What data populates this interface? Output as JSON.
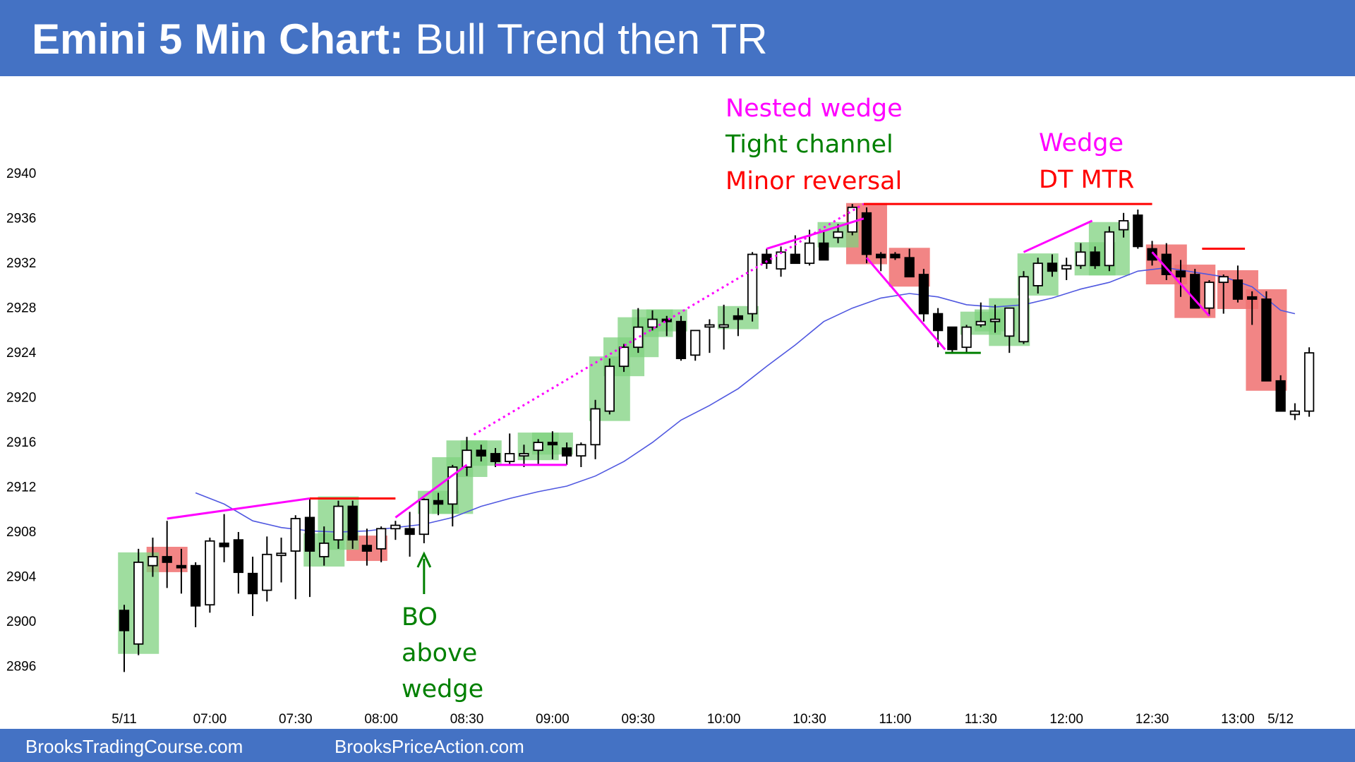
{
  "header": {
    "title_bold": "Emini 5 Min Chart:",
    "title_rest": " Bull Trend then TR"
  },
  "footer": {
    "left": "BrooksTradingCourse.com",
    "right": "BrooksPriceAction.com"
  },
  "colors": {
    "banner": "#4472c4",
    "bull_box": "#7fd17f",
    "bear_box": "#f07070",
    "magenta": "#ff00ff",
    "red": "#ff0000",
    "green": "#008000",
    "ema": "#5058e0"
  },
  "annotations": {
    "nested_wedge": "Nested wedge",
    "tight_channel": "Tight channel",
    "minor_reversal": "Minor reversal",
    "wedge": "Wedge",
    "dt_mtr": "DT MTR",
    "bo_1": "BO",
    "bo_2": "above",
    "bo_3": "wedge"
  },
  "chart_data": {
    "type": "candlestick",
    "title": "Emini 5 Min Chart: Bull Trend then TR",
    "ylim": [
      2894,
      2946
    ],
    "y_ticks": [
      2896,
      2900,
      2904,
      2908,
      2912,
      2916,
      2920,
      2924,
      2928,
      2932,
      2936,
      2940
    ],
    "x_tick_labels": [
      "5/11",
      "07:00",
      "07:30",
      "08:00",
      "08:30",
      "09:00",
      "09:30",
      "10:00",
      "10:30",
      "11:00",
      "11:30",
      "12:00",
      "12:30",
      "13:00",
      "5/12"
    ],
    "x_tick_bars": [
      0,
      6,
      12,
      18,
      24,
      30,
      36,
      42,
      48,
      54,
      60,
      66,
      72,
      78,
      81
    ],
    "bars": [
      {
        "o": 2901.0,
        "h": 2901.5,
        "l": 2895.5,
        "c": 2899.2
      },
      {
        "o": 2898.0,
        "h": 2906.5,
        "l": 2897.0,
        "c": 2905.3
      },
      {
        "o": 2905.0,
        "h": 2907.5,
        "l": 2904.0,
        "c": 2905.8
      },
      {
        "o": 2905.8,
        "h": 2909.0,
        "l": 2903.0,
        "c": 2905.3
      },
      {
        "o": 2905.0,
        "h": 2906.5,
        "l": 2902.5,
        "c": 2904.9
      },
      {
        "o": 2905.0,
        "h": 2905.3,
        "l": 2899.5,
        "c": 2901.4
      },
      {
        "o": 2901.5,
        "h": 2907.5,
        "l": 2900.8,
        "c": 2907.2
      },
      {
        "o": 2907.0,
        "h": 2909.6,
        "l": 2905.3,
        "c": 2906.7
      },
      {
        "o": 2907.3,
        "h": 2908.0,
        "l": 2902.5,
        "c": 2904.4
      },
      {
        "o": 2904.3,
        "h": 2905.8,
        "l": 2900.5,
        "c": 2902.5
      },
      {
        "o": 2902.8,
        "h": 2907.6,
        "l": 2901.8,
        "c": 2906.0
      },
      {
        "o": 2906.0,
        "h": 2907.5,
        "l": 2903.5,
        "c": 2906.1
      },
      {
        "o": 2906.3,
        "h": 2909.5,
        "l": 2902.0,
        "c": 2909.2
      },
      {
        "o": 2909.3,
        "h": 2911.0,
        "l": 2902.2,
        "c": 2906.3
      },
      {
        "o": 2905.8,
        "h": 2908.5,
        "l": 2905.0,
        "c": 2907.0
      },
      {
        "o": 2907.3,
        "h": 2910.8,
        "l": 2906.5,
        "c": 2910.3
      },
      {
        "o": 2910.3,
        "h": 2910.8,
        "l": 2906.5,
        "c": 2907.3
      },
      {
        "o": 2906.8,
        "h": 2908.3,
        "l": 2905.0,
        "c": 2906.3
      },
      {
        "o": 2906.5,
        "h": 2908.5,
        "l": 2905.3,
        "c": 2908.3
      },
      {
        "o": 2908.3,
        "h": 2909.0,
        "l": 2907.3,
        "c": 2908.6
      },
      {
        "o": 2908.3,
        "h": 2909.8,
        "l": 2905.8,
        "c": 2907.8
      },
      {
        "o": 2907.8,
        "h": 2911.0,
        "l": 2907.0,
        "c": 2910.9
      },
      {
        "o": 2910.8,
        "h": 2911.5,
        "l": 2909.5,
        "c": 2910.5
      },
      {
        "o": 2910.5,
        "h": 2914.0,
        "l": 2908.5,
        "c": 2913.8
      },
      {
        "o": 2913.8,
        "h": 2916.5,
        "l": 2913.0,
        "c": 2915.3
      },
      {
        "o": 2915.3,
        "h": 2915.8,
        "l": 2914.3,
        "c": 2914.8
      },
      {
        "o": 2915.0,
        "h": 2915.5,
        "l": 2913.8,
        "c": 2914.3
      },
      {
        "o": 2914.3,
        "h": 2916.8,
        "l": 2914.0,
        "c": 2915.0
      },
      {
        "o": 2914.8,
        "h": 2915.8,
        "l": 2913.8,
        "c": 2915.0
      },
      {
        "o": 2915.3,
        "h": 2916.3,
        "l": 2914.0,
        "c": 2916.0
      },
      {
        "o": 2916.0,
        "h": 2917.0,
        "l": 2914.5,
        "c": 2915.8
      },
      {
        "o": 2915.5,
        "h": 2916.0,
        "l": 2914.0,
        "c": 2914.8
      },
      {
        "o": 2914.8,
        "h": 2916.0,
        "l": 2913.8,
        "c": 2915.8
      },
      {
        "o": 2915.8,
        "h": 2919.8,
        "l": 2914.5,
        "c": 2919.0
      },
      {
        "o": 2918.8,
        "h": 2923.5,
        "l": 2918.5,
        "c": 2922.8
      },
      {
        "o": 2922.8,
        "h": 2924.8,
        "l": 2922.3,
        "c": 2924.5
      },
      {
        "o": 2924.5,
        "h": 2928.0,
        "l": 2924.0,
        "c": 2926.3
      },
      {
        "o": 2926.3,
        "h": 2927.8,
        "l": 2926.0,
        "c": 2927.0
      },
      {
        "o": 2927.0,
        "h": 2927.3,
        "l": 2925.5,
        "c": 2926.8
      },
      {
        "o": 2926.8,
        "h": 2927.3,
        "l": 2923.3,
        "c": 2923.5
      },
      {
        "o": 2923.8,
        "h": 2926.0,
        "l": 2923.3,
        "c": 2926.0
      },
      {
        "o": 2926.5,
        "h": 2927.0,
        "l": 2924.0,
        "c": 2926.5
      },
      {
        "o": 2926.3,
        "h": 2928.3,
        "l": 2924.3,
        "c": 2926.5
      },
      {
        "o": 2927.3,
        "h": 2928.0,
        "l": 2925.5,
        "c": 2927.0
      },
      {
        "o": 2927.5,
        "h": 2933.0,
        "l": 2926.8,
        "c": 2932.8
      },
      {
        "o": 2932.8,
        "h": 2933.3,
        "l": 2931.5,
        "c": 2932.0
      },
      {
        "o": 2931.5,
        "h": 2933.5,
        "l": 2930.8,
        "c": 2933.0
      },
      {
        "o": 2932.8,
        "h": 2934.5,
        "l": 2932.0,
        "c": 2932.0
      },
      {
        "o": 2932.0,
        "h": 2935.0,
        "l": 2931.8,
        "c": 2933.8
      },
      {
        "o": 2933.8,
        "h": 2934.8,
        "l": 2932.5,
        "c": 2932.3
      },
      {
        "o": 2934.3,
        "h": 2935.5,
        "l": 2933.8,
        "c": 2934.8
      },
      {
        "o": 2934.8,
        "h": 2937.3,
        "l": 2934.5,
        "c": 2937.0
      },
      {
        "o": 2936.5,
        "h": 2937.0,
        "l": 2932.0,
        "c": 2932.8
      },
      {
        "o": 2932.8,
        "h": 2933.0,
        "l": 2931.3,
        "c": 2932.5
      },
      {
        "o": 2932.8,
        "h": 2933.0,
        "l": 2932.3,
        "c": 2932.5
      },
      {
        "o": 2932.5,
        "h": 2933.3,
        "l": 2930.8,
        "c": 2930.8
      },
      {
        "o": 2931.0,
        "h": 2931.5,
        "l": 2926.8,
        "c": 2927.5
      },
      {
        "o": 2927.5,
        "h": 2928.0,
        "l": 2924.5,
        "c": 2926.0
      },
      {
        "o": 2926.3,
        "h": 2926.3,
        "l": 2924.0,
        "c": 2924.3
      },
      {
        "o": 2924.5,
        "h": 2926.5,
        "l": 2924.0,
        "c": 2926.3
      },
      {
        "o": 2926.5,
        "h": 2928.5,
        "l": 2926.3,
        "c": 2926.8
      },
      {
        "o": 2926.8,
        "h": 2928.3,
        "l": 2925.8,
        "c": 2927.0
      },
      {
        "o": 2925.5,
        "h": 2928.0,
        "l": 2924.0,
        "c": 2928.0
      },
      {
        "o": 2925.0,
        "h": 2931.3,
        "l": 2924.8,
        "c": 2930.8
      },
      {
        "o": 2930.0,
        "h": 2932.5,
        "l": 2929.3,
        "c": 2932.0
      },
      {
        "o": 2932.0,
        "h": 2932.8,
        "l": 2930.8,
        "c": 2931.3
      },
      {
        "o": 2931.5,
        "h": 2932.5,
        "l": 2930.5,
        "c": 2931.8
      },
      {
        "o": 2931.8,
        "h": 2933.8,
        "l": 2931.5,
        "c": 2933.0
      },
      {
        "o": 2933.0,
        "h": 2933.5,
        "l": 2931.5,
        "c": 2931.8
      },
      {
        "o": 2931.8,
        "h": 2935.3,
        "l": 2931.3,
        "c": 2934.8
      },
      {
        "o": 2935.0,
        "h": 2936.5,
        "l": 2934.3,
        "c": 2935.8
      },
      {
        "o": 2936.3,
        "h": 2936.8,
        "l": 2933.3,
        "c": 2933.5
      },
      {
        "o": 2933.3,
        "h": 2934.0,
        "l": 2931.8,
        "c": 2932.3
      },
      {
        "o": 2932.8,
        "h": 2933.8,
        "l": 2930.5,
        "c": 2931.0
      },
      {
        "o": 2931.3,
        "h": 2932.3,
        "l": 2929.0,
        "c": 2930.8
      },
      {
        "o": 2931.0,
        "h": 2931.5,
        "l": 2928.0,
        "c": 2928.0
      },
      {
        "o": 2928.0,
        "h": 2930.5,
        "l": 2927.3,
        "c": 2930.3
      },
      {
        "o": 2930.3,
        "h": 2931.0,
        "l": 2927.5,
        "c": 2930.8
      },
      {
        "o": 2930.5,
        "h": 2931.8,
        "l": 2928.5,
        "c": 2928.8
      },
      {
        "o": 2929.0,
        "h": 2929.5,
        "l": 2926.5,
        "c": 2928.8
      },
      {
        "o": 2928.8,
        "h": 2929.5,
        "l": 2921.8,
        "c": 2921.5
      },
      {
        "o": 2921.5,
        "h": 2922.0,
        "l": 2918.8,
        "c": 2918.8
      },
      {
        "o": 2918.5,
        "h": 2919.5,
        "l": 2918.0,
        "c": 2918.8
      },
      {
        "o": 2918.8,
        "h": 2924.5,
        "l": 2918.3,
        "c": 2924.0
      }
    ],
    "ema": [
      [
        5,
        2911.5
      ],
      [
        7,
        2910.5
      ],
      [
        9,
        2909.0
      ],
      [
        11,
        2908.4
      ],
      [
        13,
        2908.1
      ],
      [
        15,
        2908.0
      ],
      [
        17,
        2908.1
      ],
      [
        19,
        2908.4
      ],
      [
        21,
        2908.7
      ],
      [
        23,
        2909.3
      ],
      [
        25,
        2910.3
      ],
      [
        27,
        2911.0
      ],
      [
        29,
        2911.6
      ],
      [
        31,
        2912.1
      ],
      [
        33,
        2913.0
      ],
      [
        35,
        2914.3
      ],
      [
        37,
        2916.0
      ],
      [
        39,
        2918.0
      ],
      [
        41,
        2919.3
      ],
      [
        43,
        2920.8
      ],
      [
        45,
        2922.8
      ],
      [
        47,
        2924.7
      ],
      [
        49,
        2926.8
      ],
      [
        51,
        2928.0
      ],
      [
        53,
        2928.9
      ],
      [
        55,
        2929.3
      ],
      [
        57,
        2929.0
      ],
      [
        59,
        2928.3
      ],
      [
        61,
        2928.1
      ],
      [
        63,
        2928.3
      ],
      [
        65,
        2928.9
      ],
      [
        67,
        2929.7
      ],
      [
        69,
        2930.3
      ],
      [
        71,
        2931.3
      ],
      [
        73,
        2931.6
      ],
      [
        75,
        2931.2
      ],
      [
        77,
        2930.8
      ],
      [
        79,
        2929.9
      ],
      [
        81,
        2927.8
      ],
      [
        82,
        2927.5
      ]
    ],
    "bull_signal_boxes": [
      1,
      14,
      15,
      22,
      23,
      24,
      25,
      29,
      30,
      34,
      35,
      36,
      37,
      38,
      43,
      50,
      60,
      61,
      62,
      64,
      68,
      69
    ],
    "bear_signal_boxes": [
      3,
      17,
      52,
      55,
      73,
      75,
      78,
      80
    ],
    "lines": [
      {
        "color": "#ff00ff",
        "from": [
          3,
          2909.2
        ],
        "to": [
          13,
          2911.0
        ]
      },
      {
        "color": "#ff0000",
        "from": [
          13,
          2911.0
        ],
        "to": [
          19,
          2911.0
        ]
      },
      {
        "color": "#ff00ff",
        "from": [
          19,
          2909.3
        ],
        "to": [
          24,
          2914.0
        ]
      },
      {
        "color": "#ff00ff",
        "from": [
          26,
          2914.0
        ],
        "to": [
          31,
          2914.0
        ]
      },
      {
        "color": "#ff00ff",
        "from": [
          24.5,
          2916.7
        ],
        "to": [
          51.8,
          2937.3
        ],
        "dashed": true
      },
      {
        "color": "#ff00ff",
        "from": [
          45,
          2933.3
        ],
        "to": [
          51.8,
          2936.0
        ]
      },
      {
        "color": "#ff0000",
        "from": [
          51.8,
          2937.3
        ],
        "to": [
          72,
          2937.3
        ]
      },
      {
        "color": "#ff00ff",
        "from": [
          52,
          2932.5
        ],
        "to": [
          57.5,
          2924.3
        ]
      },
      {
        "color": "#008000",
        "from": [
          57.5,
          2924.0
        ],
        "to": [
          60,
          2924.0
        ]
      },
      {
        "color": "#ff00ff",
        "from": [
          63,
          2933.0
        ],
        "to": [
          67.8,
          2935.8
        ]
      },
      {
        "color": "#ff00ff",
        "from": [
          72,
          2933.0
        ],
        "to": [
          76,
          2927.3
        ]
      },
      {
        "color": "#ff0000",
        "from": [
          75.5,
          2933.3
        ],
        "to": [
          78.5,
          2933.3
        ]
      }
    ]
  }
}
